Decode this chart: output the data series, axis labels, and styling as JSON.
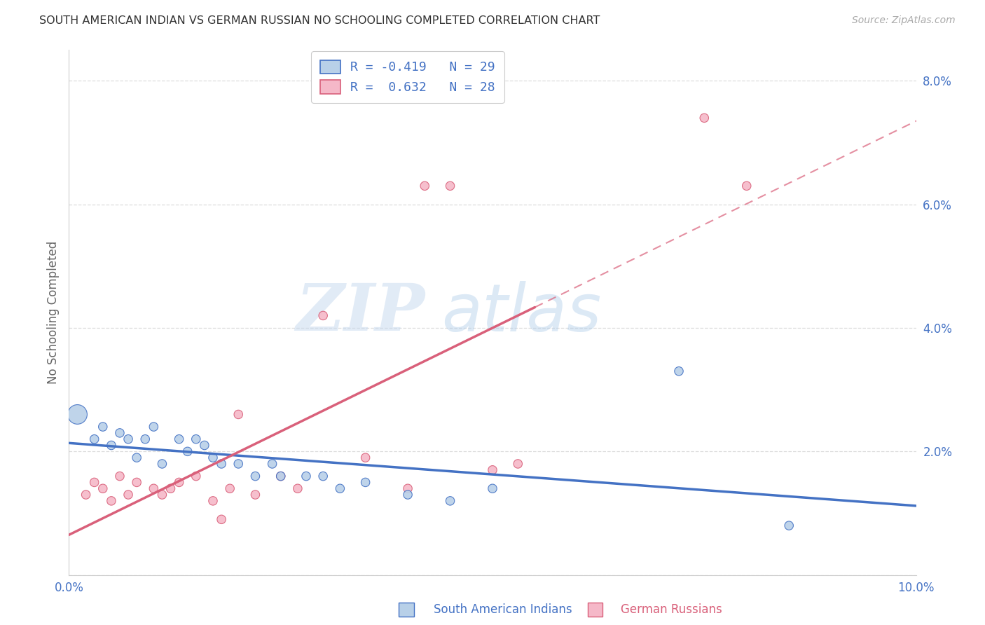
{
  "title": "SOUTH AMERICAN INDIAN VS GERMAN RUSSIAN NO SCHOOLING COMPLETED CORRELATION CHART",
  "source": "Source: ZipAtlas.com",
  "ylabel": "No Schooling Completed",
  "xlim": [
    0,
    0.1
  ],
  "ylim": [
    0,
    0.085
  ],
  "xticks": [
    0.0,
    0.02,
    0.04,
    0.06,
    0.08,
    0.1
  ],
  "yticks": [
    0.0,
    0.02,
    0.04,
    0.06,
    0.08
  ],
  "ytick_labels": [
    "",
    "2.0%",
    "4.0%",
    "6.0%",
    "8.0%"
  ],
  "xtick_labels": [
    "0.0%",
    "",
    "",
    "",
    "",
    "10.0%"
  ],
  "legend_blue_r": "-0.419",
  "legend_blue_n": "29",
  "legend_pink_r": "0.632",
  "legend_pink_n": "28",
  "legend_label_blue": "South American Indians",
  "legend_label_pink": "German Russians",
  "blue_color": "#b8d0e8",
  "pink_color": "#f5b8c8",
  "blue_line_color": "#4472c4",
  "pink_line_color": "#d9607a",
  "watermark_zip": "ZIP",
  "watermark_atlas": "atlas",
  "blue_scatter_x": [
    0.001,
    0.003,
    0.004,
    0.005,
    0.006,
    0.007,
    0.008,
    0.009,
    0.01,
    0.011,
    0.013,
    0.014,
    0.015,
    0.016,
    0.017,
    0.018,
    0.02,
    0.022,
    0.024,
    0.025,
    0.028,
    0.03,
    0.032,
    0.035,
    0.04,
    0.045,
    0.05,
    0.072,
    0.085
  ],
  "blue_scatter_y": [
    0.026,
    0.022,
    0.024,
    0.021,
    0.023,
    0.022,
    0.019,
    0.022,
    0.024,
    0.018,
    0.022,
    0.02,
    0.022,
    0.021,
    0.019,
    0.018,
    0.018,
    0.016,
    0.018,
    0.016,
    0.016,
    0.016,
    0.014,
    0.015,
    0.013,
    0.012,
    0.014,
    0.033,
    0.008
  ],
  "blue_scatter_sizes": [
    400,
    80,
    80,
    80,
    80,
    80,
    80,
    80,
    80,
    80,
    80,
    80,
    80,
    80,
    80,
    80,
    80,
    80,
    80,
    80,
    80,
    80,
    80,
    80,
    80,
    80,
    80,
    80,
    80
  ],
  "pink_scatter_x": [
    0.002,
    0.003,
    0.004,
    0.005,
    0.006,
    0.007,
    0.008,
    0.01,
    0.011,
    0.012,
    0.013,
    0.015,
    0.017,
    0.018,
    0.019,
    0.02,
    0.022,
    0.025,
    0.027,
    0.03,
    0.035,
    0.04,
    0.042,
    0.045,
    0.05,
    0.053,
    0.075,
    0.08
  ],
  "pink_scatter_y": [
    0.013,
    0.015,
    0.014,
    0.012,
    0.016,
    0.013,
    0.015,
    0.014,
    0.013,
    0.014,
    0.015,
    0.016,
    0.012,
    0.009,
    0.014,
    0.026,
    0.013,
    0.016,
    0.014,
    0.042,
    0.019,
    0.014,
    0.063,
    0.063,
    0.017,
    0.018,
    0.074,
    0.063
  ],
  "pink_scatter_sizes": [
    80,
    80,
    80,
    80,
    80,
    80,
    80,
    80,
    80,
    80,
    80,
    80,
    80,
    80,
    80,
    80,
    80,
    80,
    80,
    80,
    80,
    80,
    80,
    80,
    80,
    80,
    80,
    80
  ],
  "background_color": "#ffffff",
  "grid_color": "#dddddd",
  "tick_label_color": "#4472c4",
  "axis_label_color": "#666666",
  "title_color": "#333333"
}
